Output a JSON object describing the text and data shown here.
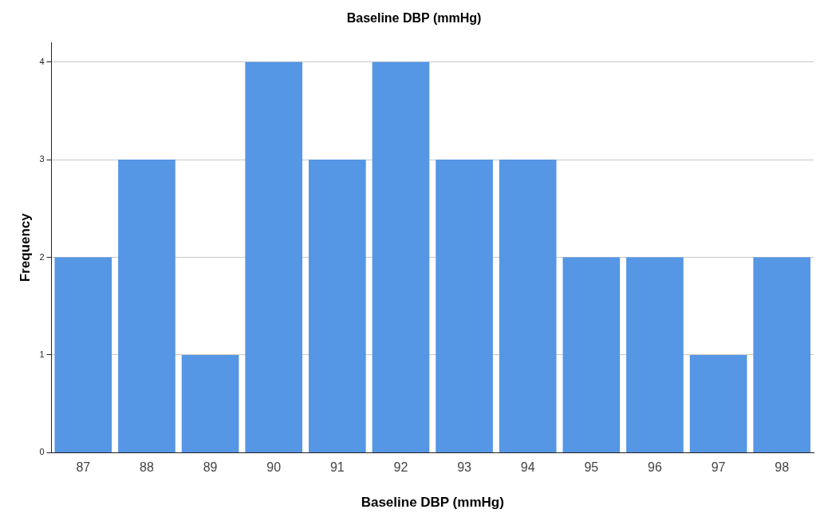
{
  "chart_data": {
    "type": "bar",
    "title": "Baseline DBP (mmHg)",
    "xlabel": "Baseline DBP (mmHg)",
    "ylabel": "Frequency",
    "categories": [
      "87",
      "88",
      "89",
      "90",
      "91",
      "92",
      "93",
      "94",
      "95",
      "96",
      "97",
      "98"
    ],
    "values": [
      2,
      3,
      1,
      4,
      3,
      4,
      3,
      3,
      2,
      2,
      1,
      2
    ],
    "color": "#5596e5",
    "ylim": [
      0,
      4.2
    ],
    "yticks": [
      0,
      1,
      2,
      3,
      4
    ],
    "grid": "y"
  }
}
